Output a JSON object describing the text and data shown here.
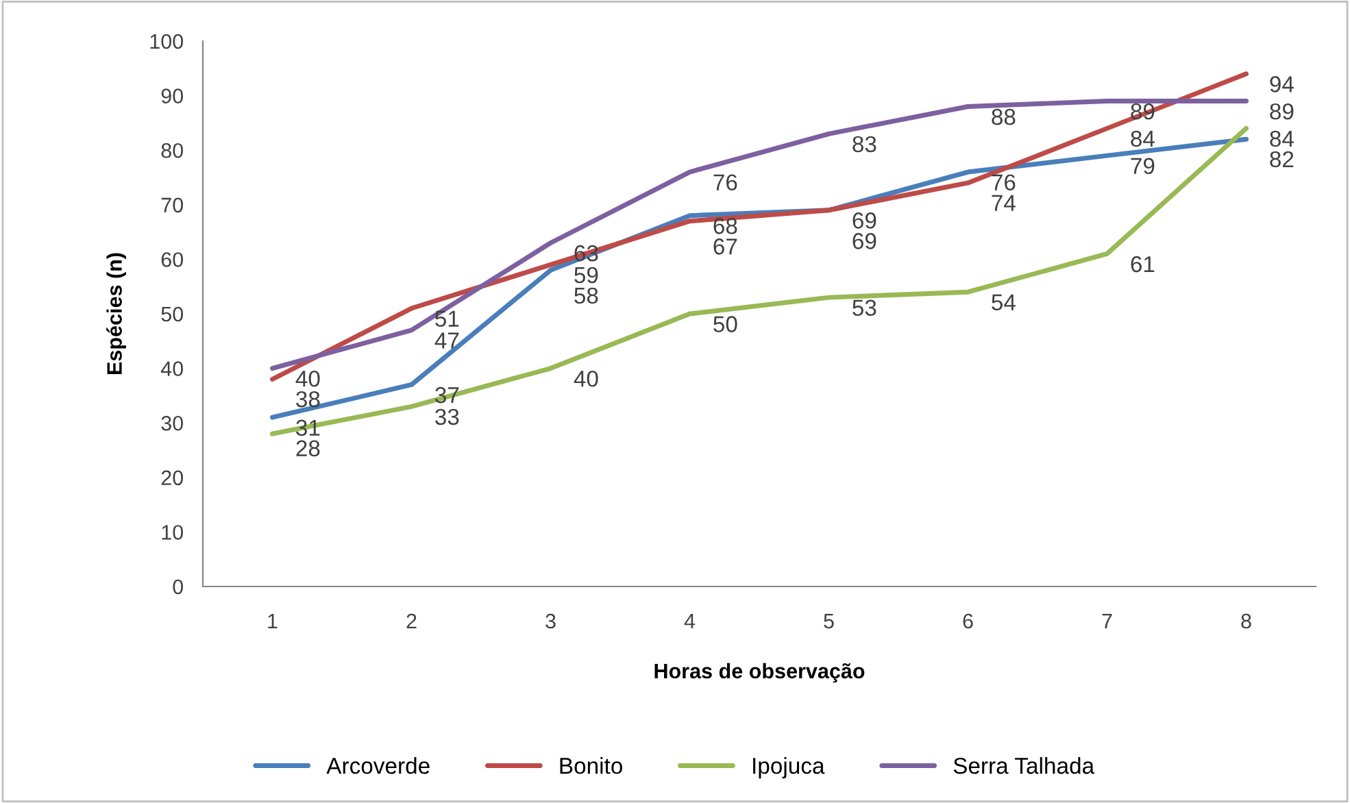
{
  "chart_data": {
    "type": "line",
    "xlabel": "Horas de observação",
    "ylabel": "Espécies (n)",
    "categories": [
      "1",
      "2",
      "3",
      "4",
      "5",
      "6",
      "7",
      "8"
    ],
    "series": [
      {
        "name": "Arcoverde",
        "color": "#4a7ebb",
        "values": [
          31,
          37,
          58,
          68,
          69,
          76,
          79,
          82
        ]
      },
      {
        "name": "Bonito",
        "color": "#be4b48",
        "values": [
          38,
          51,
          59,
          67,
          69,
          74,
          84,
          94
        ]
      },
      {
        "name": "Ipojuca",
        "color": "#98b954",
        "values": [
          28,
          33,
          40,
          50,
          53,
          54,
          61,
          84
        ]
      },
      {
        "name": "Serra Talhada",
        "color": "#7d60a0",
        "values": [
          40,
          47,
          63,
          76,
          83,
          88,
          89,
          89
        ]
      }
    ],
    "ylim": [
      0,
      100
    ],
    "yticks": [
      0,
      10,
      20,
      30,
      40,
      50,
      60,
      70,
      80,
      90,
      100
    ],
    "data_labels": true,
    "legend": "bottom",
    "grid": false,
    "marker": "none",
    "line_style": "solid"
  }
}
